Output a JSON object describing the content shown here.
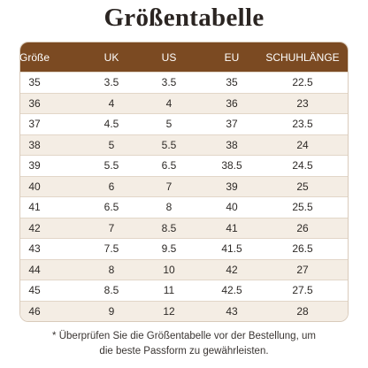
{
  "title": "Größentabelle",
  "table": {
    "header": [
      "Größe",
      "UK",
      "US",
      "EU",
      "SCHUHLÄNGE"
    ],
    "rows": [
      [
        "35",
        "3.5",
        "3.5",
        "35",
        "22.5"
      ],
      [
        "36",
        "4",
        "4",
        "36",
        "23"
      ],
      [
        "37",
        "4.5",
        "5",
        "37",
        "23.5"
      ],
      [
        "38",
        "5",
        "5.5",
        "38",
        "24"
      ],
      [
        "39",
        "5.5",
        "6.5",
        "38.5",
        "24.5"
      ],
      [
        "40",
        "6",
        "7",
        "39",
        "25"
      ],
      [
        "41",
        "6.5",
        "8",
        "40",
        "25.5"
      ],
      [
        "42",
        "7",
        "8.5",
        "41",
        "26"
      ],
      [
        "43",
        "7.5",
        "9.5",
        "41.5",
        "26.5"
      ],
      [
        "44",
        "8",
        "10",
        "42",
        "27"
      ],
      [
        "45",
        "8.5",
        "11",
        "42.5",
        "27.5"
      ],
      [
        "46",
        "9",
        "12",
        "43",
        "28"
      ]
    ]
  },
  "footnote": {
    "lines": [
      "* Überprüfen Sie die Größentabelle vor der Bestellung, um",
      "die beste Passform zu gewährleisten."
    ]
  }
}
